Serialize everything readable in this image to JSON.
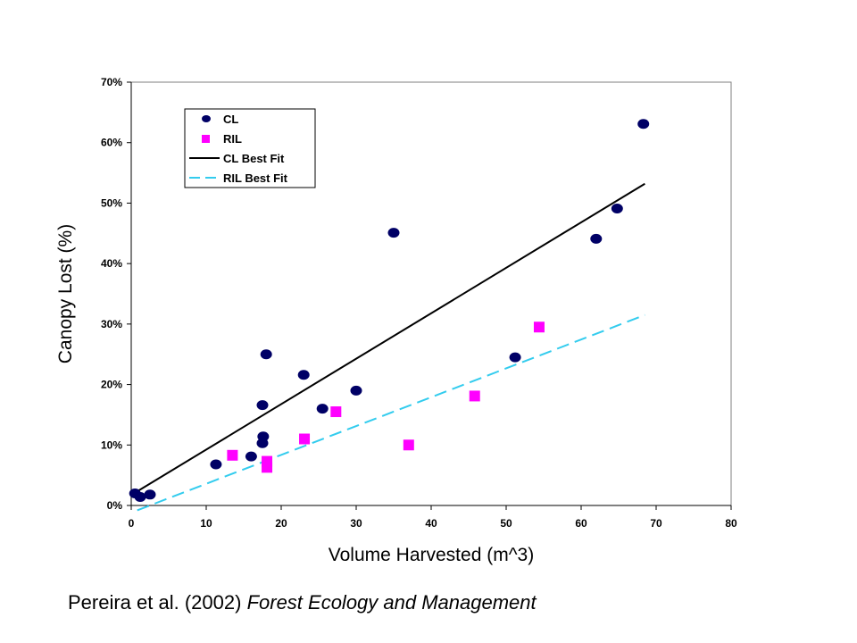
{
  "citation": {
    "authors": "Pereira et al. (2002)",
    "journal": "Forest Ecology and Management"
  },
  "chart_data": {
    "type": "scatter",
    "title": "",
    "xlabel": "Volume Harvested (m^3)",
    "ylabel": "Canopy Lost (%)",
    "xlim": [
      0,
      80
    ],
    "ylim": [
      0,
      0.7
    ],
    "x_ticks": [
      "0",
      "10",
      "20",
      "30",
      "40",
      "50",
      "60",
      "70",
      "80"
    ],
    "y_ticks": [
      "0%",
      "10%",
      "20%",
      "30%",
      "40%",
      "50%",
      "60%",
      "70%"
    ],
    "grid": false,
    "legend_position": "top-left",
    "series": [
      {
        "name": "CL",
        "marker": "circle",
        "color": "#000066",
        "points": [
          {
            "x": 0.5,
            "y": 0.02
          },
          {
            "x": 1.2,
            "y": 0.014
          },
          {
            "x": 2.5,
            "y": 0.018
          },
          {
            "x": 11.3,
            "y": 0.068
          },
          {
            "x": 16.0,
            "y": 0.081
          },
          {
            "x": 17.5,
            "y": 0.103
          },
          {
            "x": 17.6,
            "y": 0.114
          },
          {
            "x": 17.5,
            "y": 0.166
          },
          {
            "x": 18.0,
            "y": 0.25
          },
          {
            "x": 23.0,
            "y": 0.216
          },
          {
            "x": 25.5,
            "y": 0.16
          },
          {
            "x": 30.0,
            "y": 0.19
          },
          {
            "x": 35.0,
            "y": 0.451
          },
          {
            "x": 51.2,
            "y": 0.245
          },
          {
            "x": 62.0,
            "y": 0.441
          },
          {
            "x": 64.8,
            "y": 0.491
          },
          {
            "x": 68.3,
            "y": 0.631
          }
        ]
      },
      {
        "name": "RIL",
        "marker": "square",
        "color": "#ff00ff",
        "points": [
          {
            "x": 13.5,
            "y": 0.083
          },
          {
            "x": 18.1,
            "y": 0.073
          },
          {
            "x": 18.1,
            "y": 0.063
          },
          {
            "x": 23.1,
            "y": 0.11
          },
          {
            "x": 27.3,
            "y": 0.155
          },
          {
            "x": 37.0,
            "y": 0.1
          },
          {
            "x": 45.8,
            "y": 0.181
          },
          {
            "x": 54.4,
            "y": 0.295
          }
        ]
      }
    ],
    "fit_lines": [
      {
        "name": "CL Best Fit",
        "color": "#000000",
        "style": "solid",
        "x": [
          0.5,
          68.5
        ],
        "y": [
          0.021,
          0.532
        ]
      },
      {
        "name": "RIL Best Fit",
        "color": "#33ccee",
        "style": "dashed",
        "x": [
          0.8,
          68.5
        ],
        "y": [
          -0.008,
          0.315
        ]
      }
    ]
  }
}
